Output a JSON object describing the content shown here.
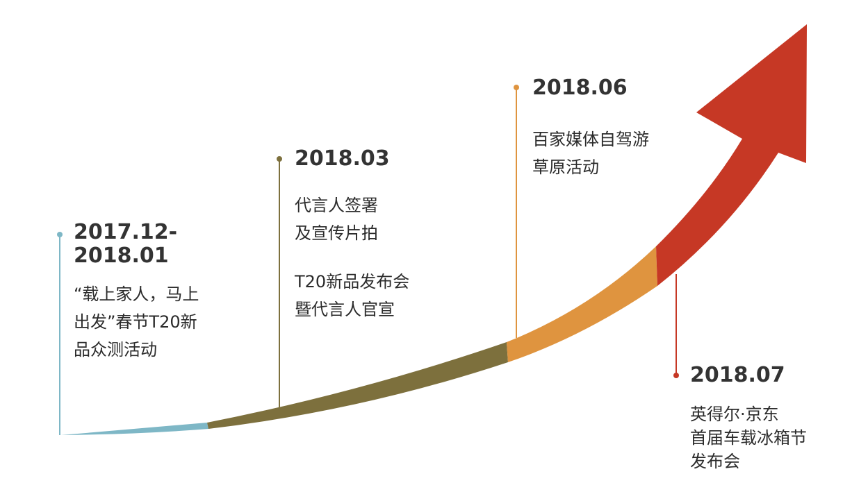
{
  "colors": {
    "teal": "#7eb7c6",
    "olive": "#7d703d",
    "orange": "#df943f",
    "red": "#c63825",
    "text": "#2b2b2b"
  },
  "milestones": [
    {
      "date": "2017.12-\n2018.01",
      "lines": [
        "“载上家人，马上",
        "出发”春节T20新",
        "品众测活动"
      ]
    },
    {
      "date": "2018.03",
      "lines": [
        "代言人签署",
        "及宣传片拍"
      ],
      "lines2": [
        "T20新品发布会",
        "暨代言人官宣"
      ]
    },
    {
      "date": "2018.06",
      "lines": [
        "百家媒体自驾游",
        "草原活动"
      ]
    },
    {
      "date": "2018.07",
      "lines": [
        "英得尔·京东",
        "首届车载冰箱节",
        "发布会"
      ]
    }
  ]
}
